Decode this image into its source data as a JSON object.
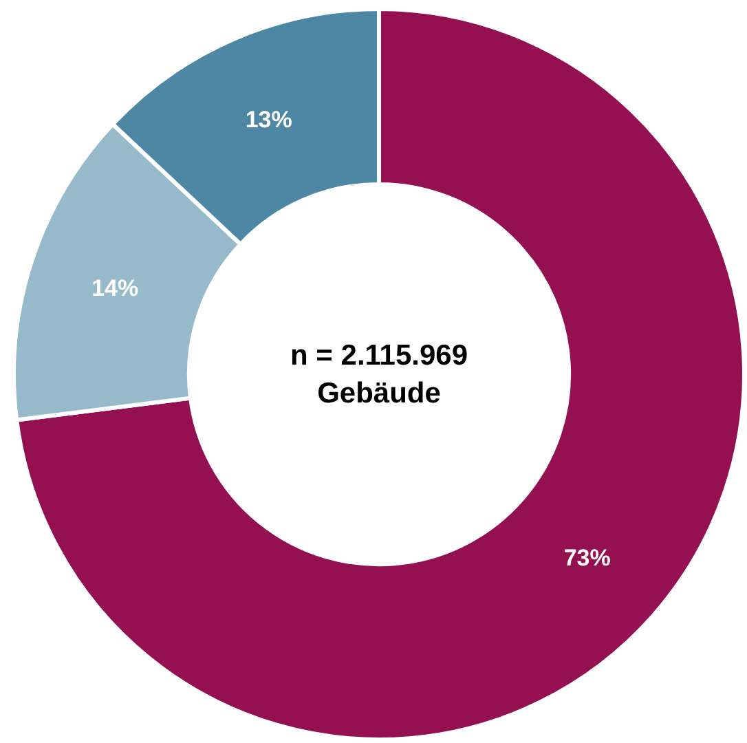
{
  "chart_data": {
    "type": "donut",
    "categories": [
      null,
      null,
      null
    ],
    "values": [
      73,
      14,
      13
    ],
    "colors": [
      "#941050",
      "#97bacb",
      "#4d87a3"
    ],
    "value_labels": [
      "73%",
      "14%",
      "13%"
    ],
    "annotations": [
      "n = 2.115.969\nGebäude"
    ]
  }
}
